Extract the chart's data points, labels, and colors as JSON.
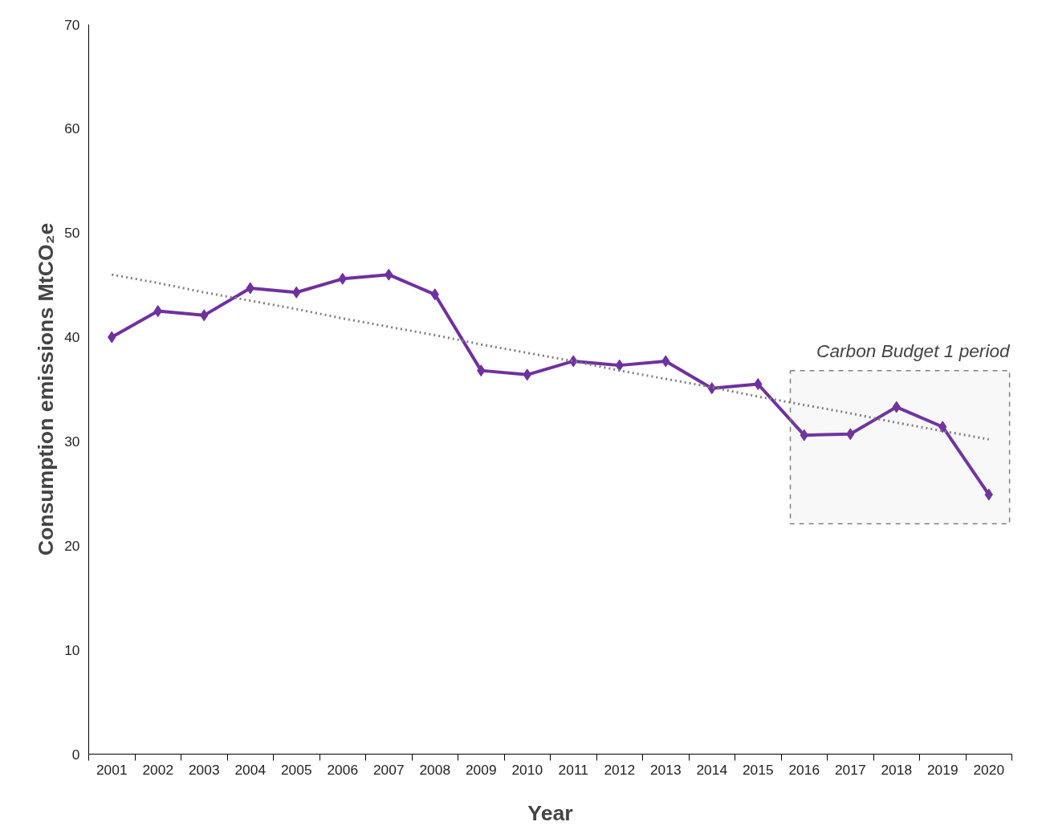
{
  "chart_data": {
    "type": "line",
    "xlabel": "Year",
    "ylabel": "Consumption emissions MtCO₂e",
    "categories": [
      "2001",
      "2002",
      "2003",
      "2004",
      "2005",
      "2006",
      "2007",
      "2008",
      "2009",
      "2010",
      "2011",
      "2012",
      "2013",
      "2014",
      "2015",
      "2016",
      "2017",
      "2018",
      "2019",
      "2020"
    ],
    "series": [
      {
        "color": "#7030a0",
        "marker": "diamond",
        "line_style": "solid",
        "values": [
          40.0,
          42.5,
          42.1,
          44.7,
          44.3,
          45.6,
          46.0,
          44.1,
          36.8,
          36.4,
          37.7,
          37.3,
          37.7,
          35.1,
          35.5,
          30.6,
          30.7,
          33.3,
          31.4,
          24.9
        ]
      },
      {
        "type": "line",
        "color": "#808080",
        "marker": "none",
        "line_style": "dotted",
        "values": [
          46.0,
          45.2,
          44.3,
          43.5,
          42.7,
          41.8,
          41.0,
          40.2,
          39.3,
          38.5,
          37.7,
          36.8,
          36.0,
          35.2,
          34.3,
          33.5,
          32.7,
          31.8,
          31.0,
          30.2
        ]
      }
    ],
    "ylim": [
      0,
      70
    ],
    "yticks": [
      0,
      10,
      20,
      30,
      40,
      50,
      60,
      70
    ],
    "grid": false,
    "bands": [
      {
        "axis": "x",
        "from": "2016",
        "to": "2020",
        "label": "Carbon Budget 1 period",
        "color": "#808080"
      }
    ]
  }
}
